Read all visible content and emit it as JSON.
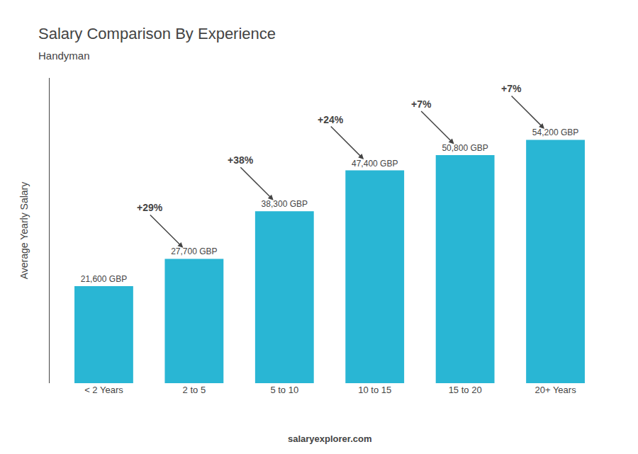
{
  "chart_data": {
    "type": "bar",
    "title": "Salary Comparison By Experience",
    "subtitle": "Handyman",
    "categories": [
      "< 2 Years",
      "2 to 5",
      "5 to 10",
      "10 to 15",
      "15 to 20",
      "20+ Years"
    ],
    "values": [
      21600,
      27700,
      38300,
      47400,
      50800,
      54200
    ],
    "value_labels": [
      "21,600 GBP",
      "27,700 GBP",
      "38,300 GBP",
      "47,400 GBP",
      "50,800 GBP",
      "54,200 GBP"
    ],
    "data_labels": true,
    "annotations": [
      "+29%",
      "+38%",
      "+24%",
      "+7%",
      "+7%"
    ],
    "ylabel": "Average Yearly Salary",
    "footer": "salaryexplorer.com",
    "color": "#29b6d4",
    "ylim": [
      0,
      68000
    ],
    "tick_labels": "x",
    "grid": false
  }
}
